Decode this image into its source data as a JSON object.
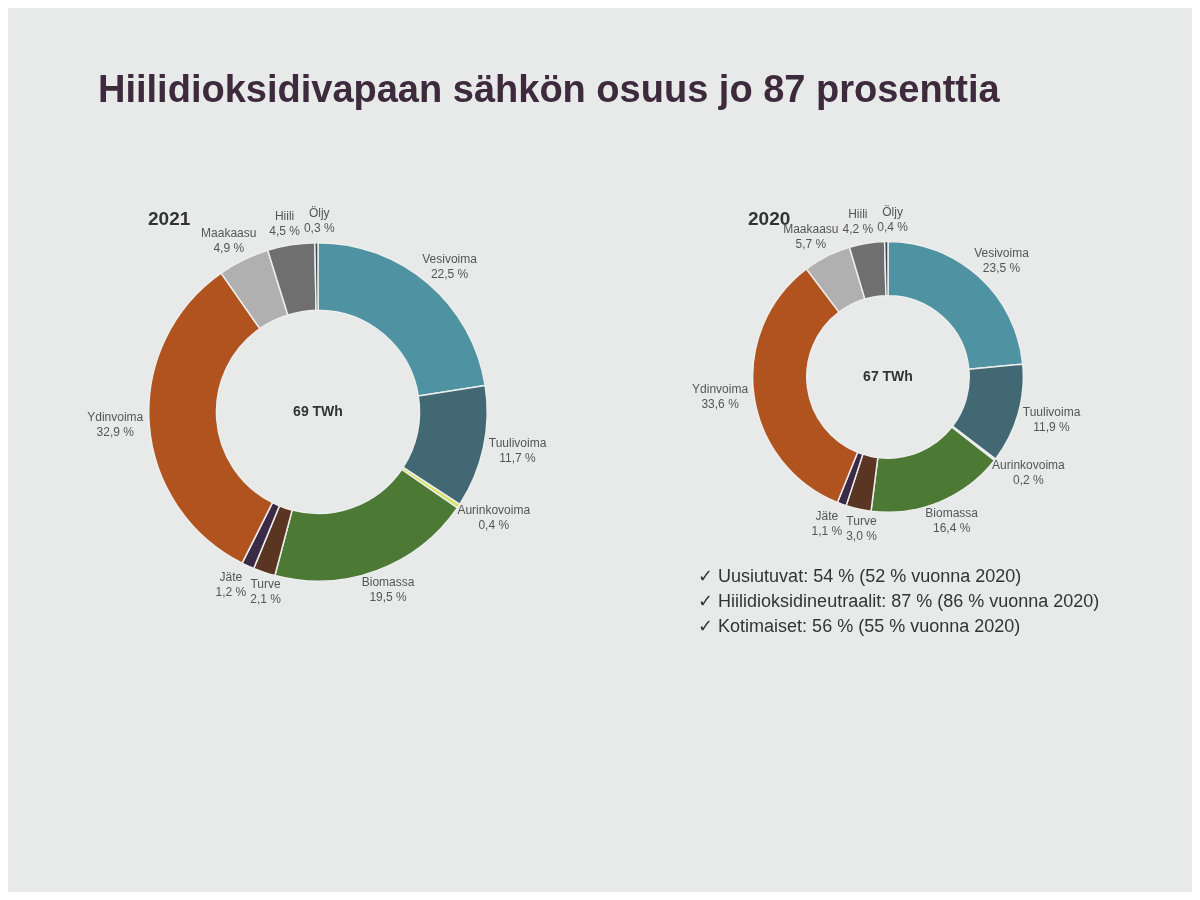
{
  "chart_data": [
    {
      "type": "donut",
      "title": "Hiilidioksidivapaan sähkön osuus jo 87 prosenttia",
      "subtitle": "2021",
      "categories": [
        "Vesivoima",
        "Tuulivoima",
        "Aurinkovoima",
        "Biomassa",
        "Turve",
        "Jäte",
        "Ydinvoima",
        "Maakaasu",
        "Hiili",
        "Öljy"
      ],
      "values": [
        22.5,
        11.7,
        0.4,
        19.5,
        2.1,
        1.2,
        32.9,
        4.9,
        4.5,
        0.3
      ],
      "value_labels": [
        "22,5 %",
        "11,7 %",
        "0,4 %",
        "19,5 %",
        "2,1 %",
        "1,2 %",
        "32,9 %",
        "4,9 %",
        "4,5 %",
        "0,3 %"
      ],
      "colors": [
        "#4f93a3",
        "#426873",
        "#d9e35a",
        "#4c7a35",
        "#5a3522",
        "#3b2a45",
        "#b0531f",
        "#b0b0b0",
        "#6f6f6f",
        "#3a4a50"
      ],
      "annotations": [
        "69 TWh"
      ]
    },
    {
      "type": "donut",
      "subtitle": "2020",
      "categories": [
        "Vesivoima",
        "Tuulivoima",
        "Aurinkovoima",
        "Biomassa",
        "Turve",
        "Jäte",
        "Ydinvoima",
        "Maakaasu",
        "Hiili",
        "Öljy"
      ],
      "values": [
        23.5,
        11.9,
        0.2,
        16.4,
        3.0,
        1.1,
        33.6,
        5.7,
        4.2,
        0.4
      ],
      "value_labels": [
        "23,5 %",
        "11,9 %",
        "0,2 %",
        "16,4 %",
        "3,0 %",
        "1,1 %",
        "33,6 %",
        "5,7 %",
        "4,2 %",
        "0,4 %"
      ],
      "colors": [
        "#4f93a3",
        "#426873",
        "#d9e35a",
        "#4c7a35",
        "#5a3522",
        "#3b2a45",
        "#b0531f",
        "#b0b0b0",
        "#6f6f6f",
        "#3a4a50"
      ],
      "annotations": [
        "67 TWh",
        "✓ Uusiutuvat: 54 % (52 % vuonna 2020)",
        "✓ Hiilidioksidineutraalit: 87 % (86 % vuonna 2020)",
        "✓ Kotimaiset: 56 % (55 % vuonna 2020)"
      ]
    }
  ]
}
